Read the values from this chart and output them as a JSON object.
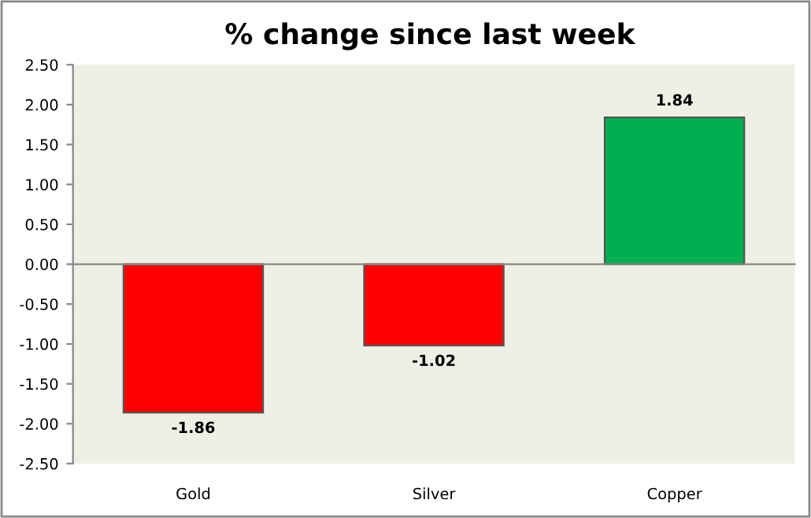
{
  "chart_data": {
    "type": "bar",
    "title": "% change since last week",
    "categories": [
      "Gold",
      "Silver",
      "Copper"
    ],
    "values": [
      -1.86,
      -1.02,
      1.84
    ],
    "colors": [
      "#ff0000",
      "#ff0000",
      "#00b050"
    ],
    "ylim": [
      -2.5,
      2.5
    ],
    "yticks": [
      {
        "value": -2.5,
        "label": "-2.50"
      },
      {
        "value": -2.0,
        "label": "-2.00"
      },
      {
        "value": -1.5,
        "label": "-1.50"
      },
      {
        "value": -1.0,
        "label": "-1.00"
      },
      {
        "value": -0.5,
        "label": "-0.50"
      },
      {
        "value": 0.0,
        "label": "0.00"
      },
      {
        "value": 0.5,
        "label": "0.50"
      },
      {
        "value": 1.0,
        "label": "1.00"
      },
      {
        "value": 1.5,
        "label": "1.50"
      },
      {
        "value": 2.0,
        "label": "2.00"
      },
      {
        "value": 2.5,
        "label": "2.50"
      }
    ],
    "legend": false,
    "data_labels": true
  }
}
